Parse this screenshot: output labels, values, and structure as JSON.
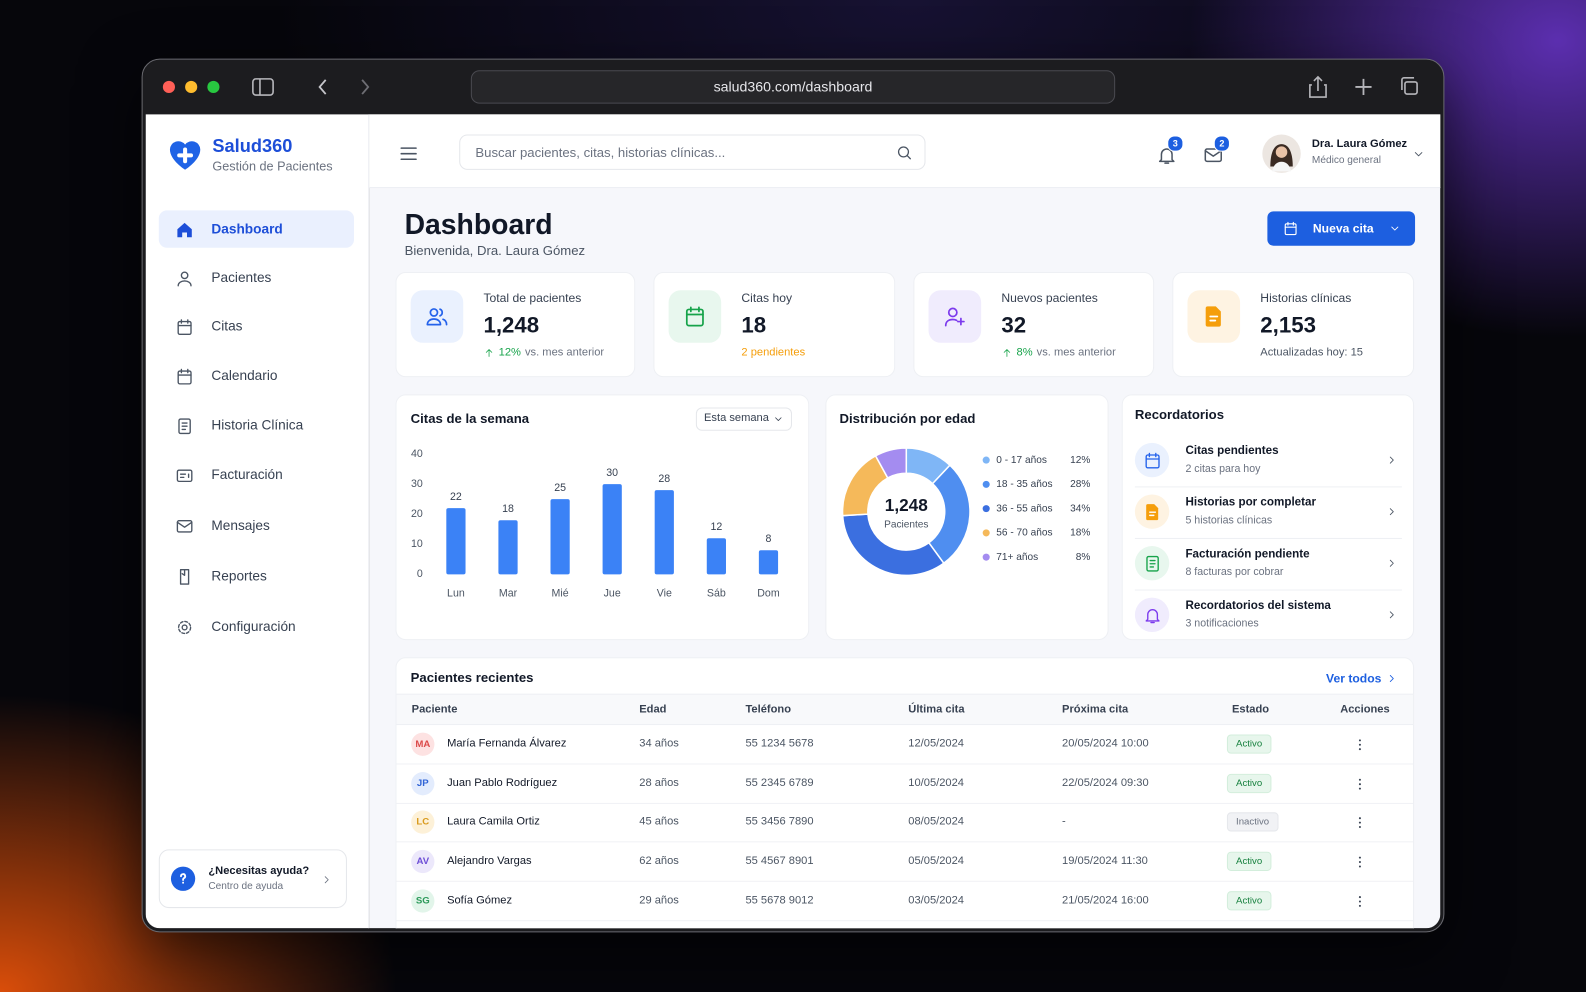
{
  "browser": {
    "url": "salud360.com/dashboard"
  },
  "sidebar": {
    "brand": "Salud360",
    "tagline": "Gestión de Pacientes",
    "nav": [
      "Dashboard",
      "Pacientes",
      "Citas",
      "Calendario",
      "Historia Clínica",
      "Facturación",
      "Mensajes",
      "Reportes",
      "Configuración"
    ],
    "help": {
      "title": "¿Necesitas ayuda?",
      "subtitle": "Centro de ayuda"
    }
  },
  "header": {
    "search_placeholder": "Buscar pacientes, citas, historias clínicas...",
    "notifications": "3",
    "messages": "2",
    "user_name": "Dra. Laura Gómez",
    "user_role": "Médico general"
  },
  "page": {
    "title": "Dashboard",
    "subtitle": "Bienvenida, Dra. Laura Gómez",
    "new_button": "Nueva cita"
  },
  "stats": [
    {
      "label": "Total de pacientes",
      "value": "1,248",
      "change": "12%",
      "note": "vs. mes anterior"
    },
    {
      "label": "Citas hoy",
      "value": "18",
      "note": "2 pendientes"
    },
    {
      "label": "Nuevos pacientes",
      "value": "32",
      "change": "8%",
      "note": "vs. mes anterior"
    },
    {
      "label": "Historias clínicas",
      "value": "2,153",
      "note": "Actualizadas hoy: 15"
    }
  ],
  "weekly_chart": {
    "type": "bar",
    "title": "Citas de la semana",
    "filter": "Esta semana",
    "categories": [
      "Lun",
      "Mar",
      "Mié",
      "Jue",
      "Vie",
      "Sáb",
      "Dom"
    ],
    "values": [
      22,
      18,
      25,
      30,
      28,
      12,
      8
    ],
    "color": "#3b82f6",
    "ylim": [
      0,
      40
    ],
    "yticks": [
      0,
      10,
      20,
      30,
      40
    ]
  },
  "age_chart": {
    "type": "donut",
    "title": "Distribución por edad",
    "center_value": "1,248",
    "center_label": "Pacientes",
    "categories": [
      "0 - 17 años",
      "18 - 35 años",
      "36 - 55 años",
      "56 - 70 años",
      "71+ años"
    ],
    "values": [
      12,
      28,
      34,
      18,
      8
    ],
    "value_labels": [
      "12%",
      "28%",
      "34%",
      "18%",
      "8%"
    ],
    "colors": [
      "#7fb6f6",
      "#4f8ef0",
      "#3b6fe0",
      "#f5b95a",
      "#a48cf0"
    ]
  },
  "reminders": {
    "title": "Recordatorios",
    "items": [
      {
        "title": "Citas pendientes",
        "subtitle": "2 citas para hoy"
      },
      {
        "title": "Historias por completar",
        "subtitle": "5 historias clínicas"
      },
      {
        "title": "Facturación pendiente",
        "subtitle": "8 facturas por cobrar"
      },
      {
        "title": "Recordatorios del sistema",
        "subtitle": "3 notificaciones"
      }
    ]
  },
  "recent_patients": {
    "title": "Pacientes recientes",
    "link": "Ver todos",
    "columns": [
      "Paciente",
      "Edad",
      "Teléfono",
      "Última cita",
      "Próxima cita",
      "Estado",
      "Acciones"
    ],
    "rows": [
      {
        "initials": "MA",
        "name": "María Fernanda Álvarez",
        "age": "34 años",
        "phone": "55 1234 5678",
        "last_visit": "12/05/2024",
        "next_visit": "20/05/2024 10:00",
        "status": "Activo"
      },
      {
        "initials": "JP",
        "name": "Juan Pablo Rodríguez",
        "age": "28 años",
        "phone": "55 2345 6789",
        "last_visit": "10/05/2024",
        "next_visit": "22/05/2024 09:30",
        "status": "Activo"
      },
      {
        "initials": "LC",
        "name": "Laura Camila Ortiz",
        "age": "45 años",
        "phone": "55 3456 7890",
        "last_visit": "08/05/2024",
        "next_visit": "-",
        "status": "Inactivo"
      },
      {
        "initials": "AV",
        "name": "Alejandro Vargas",
        "age": "62 años",
        "phone": "55 4567 8901",
        "last_visit": "05/05/2024",
        "next_visit": "19/05/2024 11:30",
        "status": "Activo"
      },
      {
        "initials": "SG",
        "name": "Sofía Gómez",
        "age": "29 años",
        "phone": "55 5678 9012",
        "last_visit": "03/05/2024",
        "next_visit": "21/05/2024 16:00",
        "status": "Activo"
      }
    ]
  }
}
